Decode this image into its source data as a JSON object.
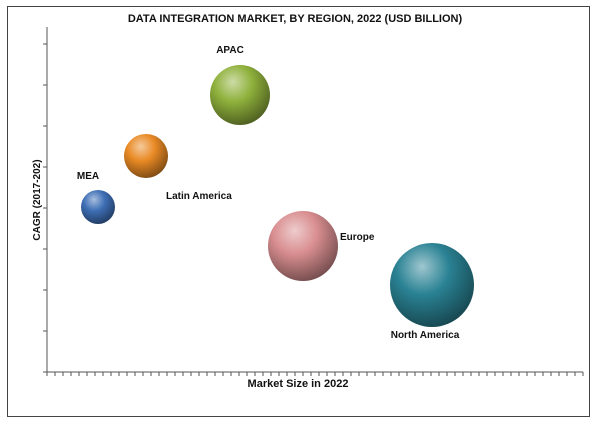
{
  "chart_data": {
    "type": "bubble",
    "title": "DATA INTEGRATION MARKET, BY REGION, 2022 (USD BILLION)",
    "xlabel": "Market Size in 2022",
    "ylabel": "CAGR (2017-202)",
    "xlim": [
      0,
      540
    ],
    "ylim": [
      0,
      340
    ],
    "axis_ticks_labeled": false,
    "grid": false,
    "legend": "none",
    "series": [
      {
        "name": "APAC",
        "x": 193,
        "y": 277,
        "size": 30,
        "color": "#8fb13c",
        "label_position": "above"
      },
      {
        "name": "Latin America",
        "x": 99,
        "y": 216,
        "size": 22,
        "color": "#e98a25",
        "label_position": "below-right"
      },
      {
        "name": "MEA",
        "x": 51,
        "y": 165,
        "size": 17,
        "color": "#3e6fb5",
        "label_position": "above-left"
      },
      {
        "name": "Europe",
        "x": 256,
        "y": 126,
        "size": 35,
        "color": "#d98e90",
        "label_position": "right"
      },
      {
        "name": "North America",
        "x": 385,
        "y": 87,
        "size": 42,
        "color": "#2a8294",
        "label_position": "below"
      }
    ]
  }
}
